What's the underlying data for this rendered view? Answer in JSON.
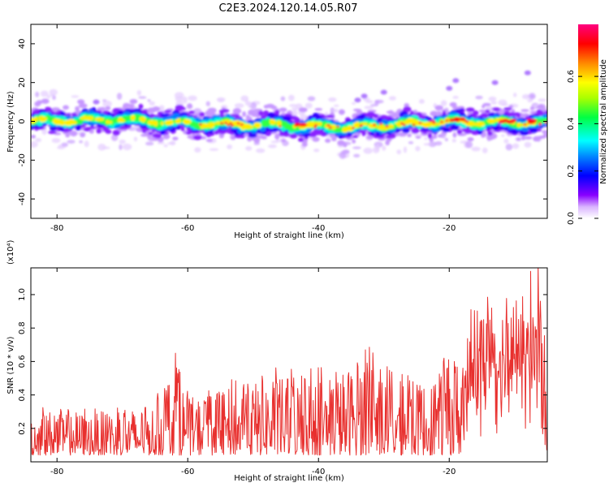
{
  "title": "C2E3.2024.120.14.05.R07",
  "chart_data": [
    {
      "type": "heatmap",
      "xlabel": "Height of straight line (km)",
      "ylabel": "Frequency (Hz)",
      "xlim": [
        -84,
        -5
      ],
      "ylim": [
        -50,
        50
      ],
      "xticks": [
        -80,
        -60,
        -40,
        -20
      ],
      "yticks": [
        -40,
        -20,
        0,
        20,
        40
      ],
      "colorbar": {
        "label": "Normalized spectral amplitude",
        "range": [
          0,
          0.82
        ],
        "ticks": [
          "0.0",
          "0.2",
          "0.4",
          "0.6"
        ],
        "tick_values": [
          0,
          0.2,
          0.4,
          0.6
        ],
        "colors": [
          "#ffffff",
          "#8800ff",
          "#0000ff",
          "#00ffff",
          "#00ff00",
          "#ffff00",
          "#ff0000",
          "#ff0080"
        ]
      },
      "band": {
        "center_hz": [
          {
            "x": -84,
            "y": 0
          },
          {
            "x": -70,
            "y": 1
          },
          {
            "x": -60,
            "y": -1
          },
          {
            "x": -45,
            "y": -2
          },
          {
            "x": -35,
            "y": -3
          },
          {
            "x": -20,
            "y": 0
          },
          {
            "x": -5,
            "y": -1
          }
        ],
        "peak_amplitude_regions": [
          {
            "x": -42,
            "y": -2
          },
          {
            "x": -19,
            "y": 1
          },
          {
            "x": -11,
            "y": 0
          },
          {
            "x": -8,
            "y": 0
          }
        ]
      }
    },
    {
      "type": "line",
      "xlabel": "Height of straight line (km)",
      "ylabel": "SNR (10 * v/v)",
      "y_multiplier_label": "(x10⁴)",
      "xlim": [
        -84,
        -5
      ],
      "ylim": [
        0,
        1.16
      ],
      "xticks": [
        -80,
        -60,
        -40,
        -20
      ],
      "yticks": [
        "0.2",
        "0.4",
        "0.6",
        "0.8",
        "1.0"
      ],
      "ytick_values": [
        0.2,
        0.4,
        0.6,
        0.8,
        1.0
      ],
      "color": "#e8302e",
      "envelope": [
        {
          "x": -84,
          "y": 0.3
        },
        {
          "x": -80,
          "y": 0.33
        },
        {
          "x": -75,
          "y": 0.3
        },
        {
          "x": -70,
          "y": 0.32
        },
        {
          "x": -65,
          "y": 0.35
        },
        {
          "x": -62,
          "y": 0.65
        },
        {
          "x": -60,
          "y": 0.4
        },
        {
          "x": -55,
          "y": 0.45
        },
        {
          "x": -50,
          "y": 0.52
        },
        {
          "x": -45,
          "y": 0.55
        },
        {
          "x": -40,
          "y": 0.55
        },
        {
          "x": -36,
          "y": 0.6
        },
        {
          "x": -33,
          "y": 0.72
        },
        {
          "x": -30,
          "y": 0.55
        },
        {
          "x": -25,
          "y": 0.5
        },
        {
          "x": -22,
          "y": 0.55
        },
        {
          "x": -19,
          "y": 0.68
        },
        {
          "x": -17,
          "y": 0.9
        },
        {
          "x": -15,
          "y": 1.0
        },
        {
          "x": -12,
          "y": 0.92
        },
        {
          "x": -10,
          "y": 0.95
        },
        {
          "x": -8,
          "y": 1.08
        },
        {
          "x": -6.5,
          "y": 1.18
        },
        {
          "x": -5,
          "y": 0.6
        }
      ]
    }
  ]
}
